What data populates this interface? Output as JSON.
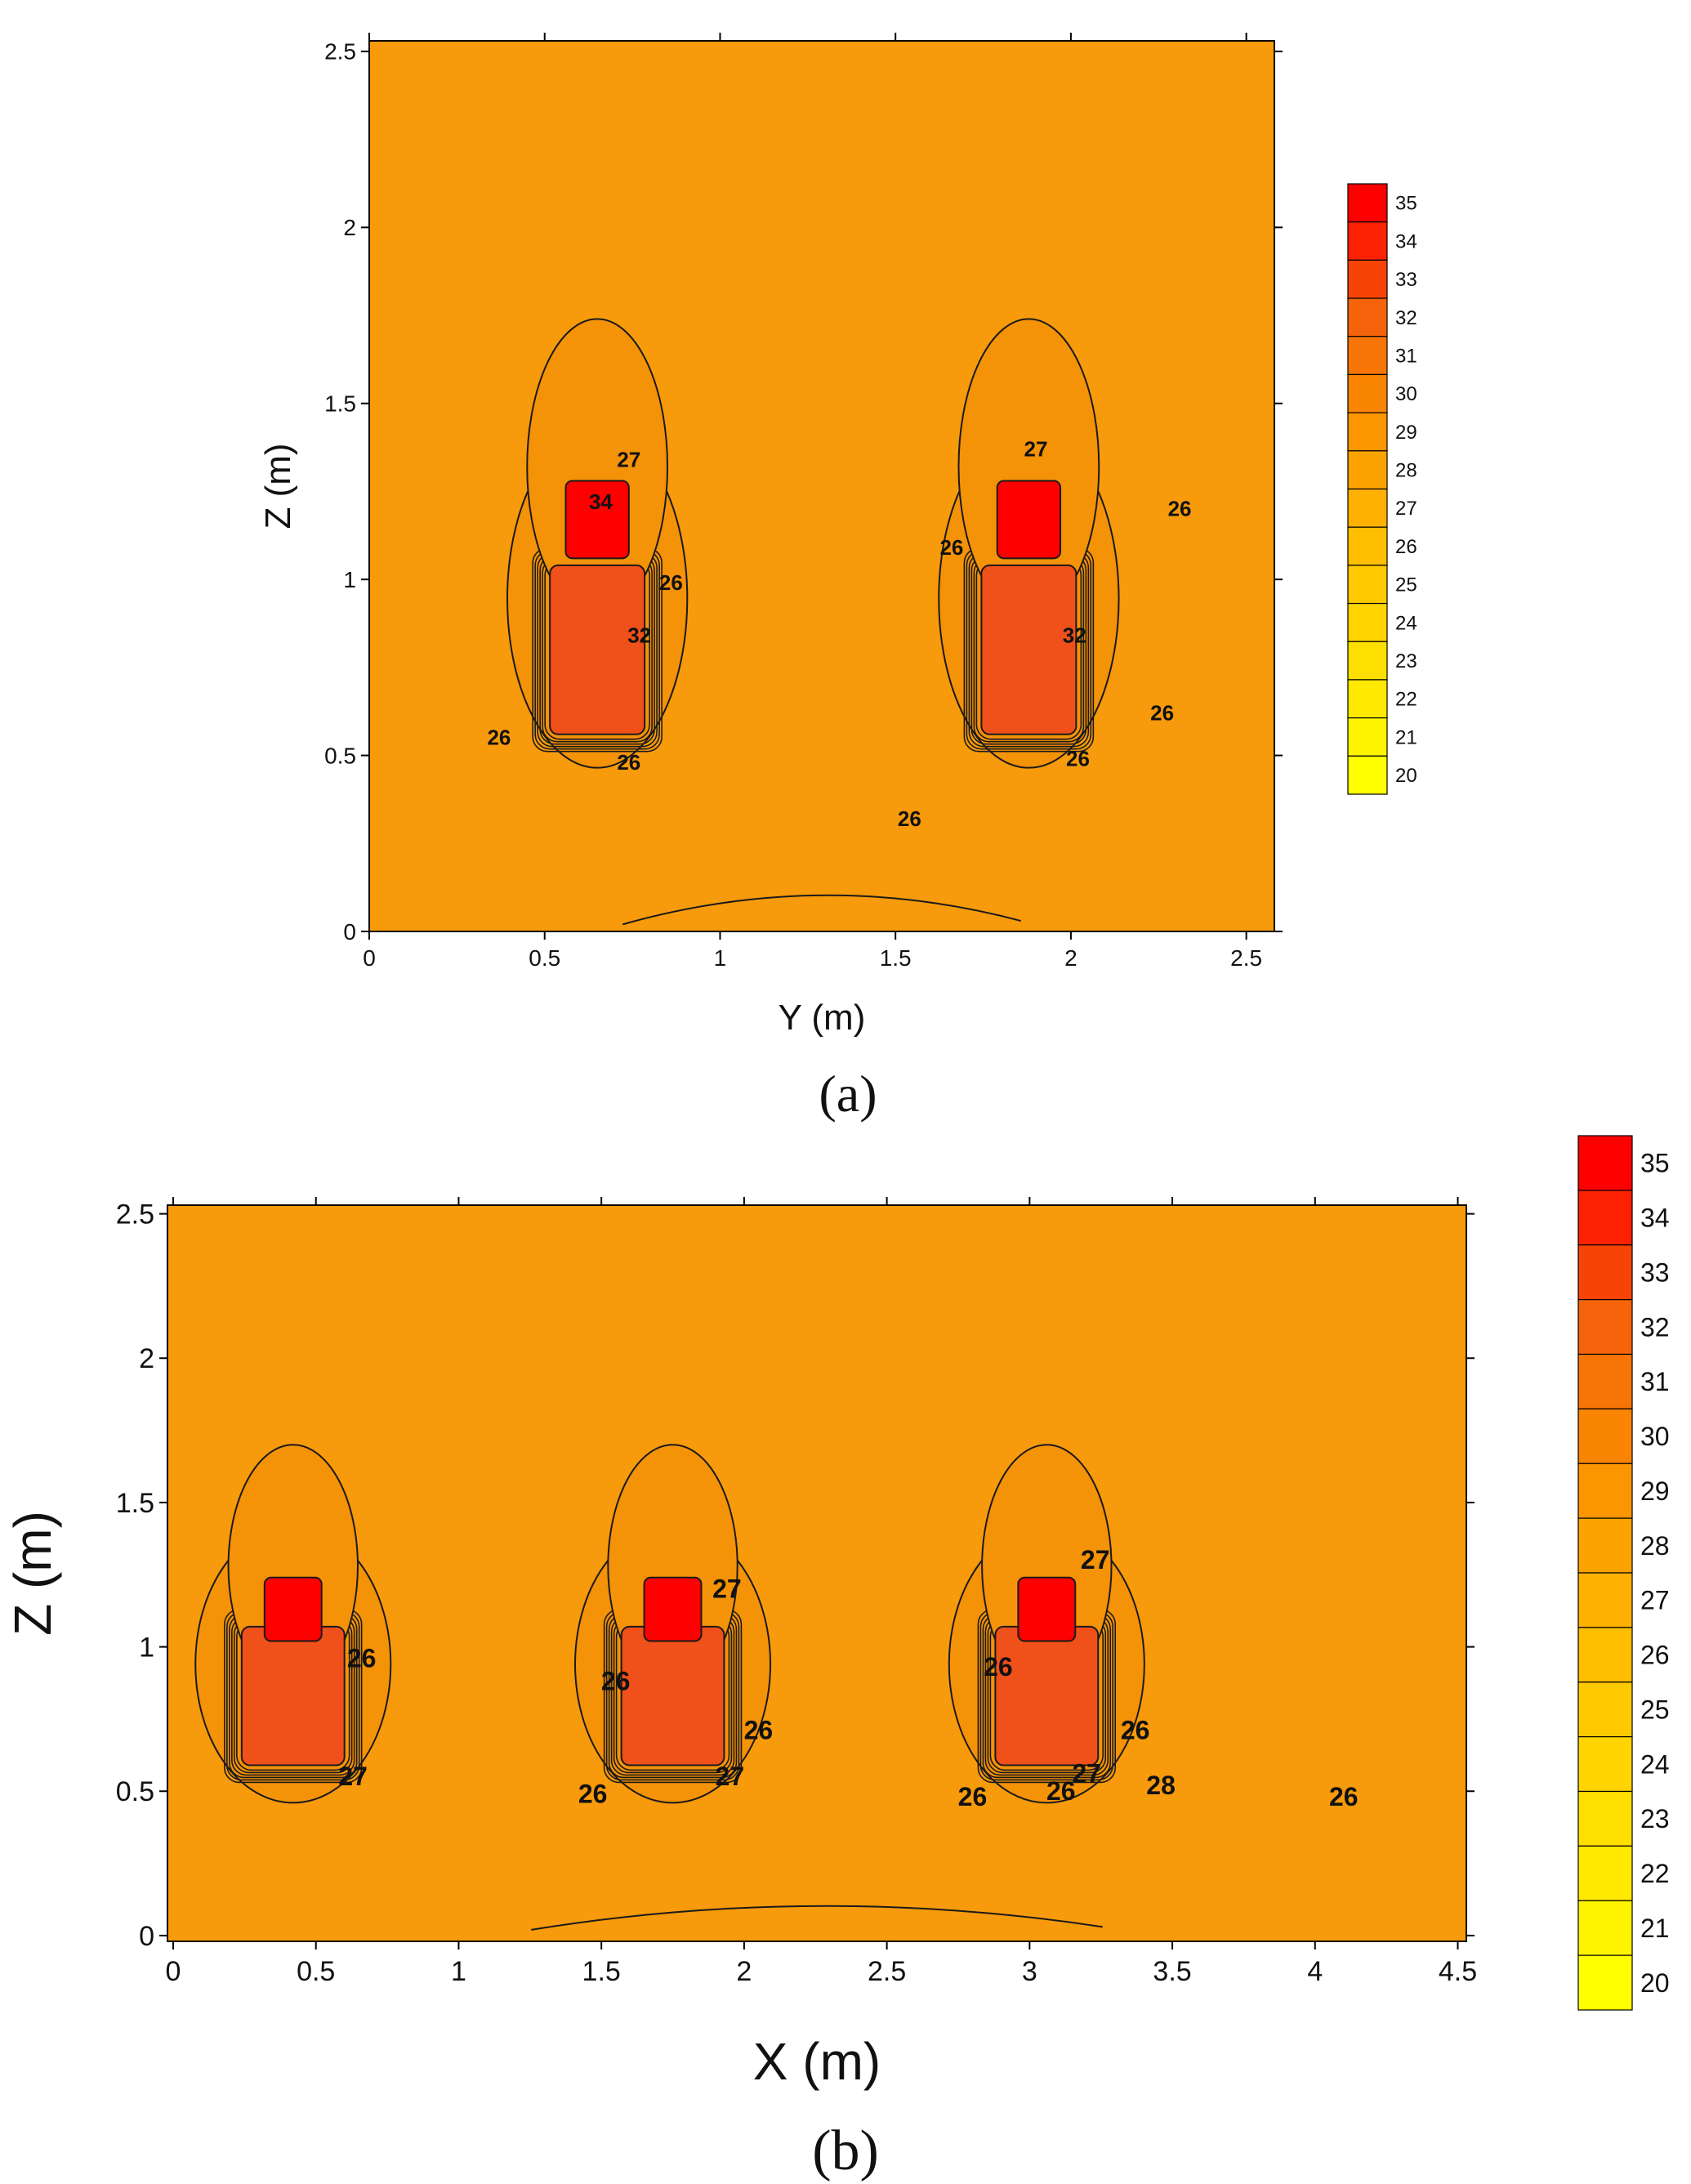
{
  "chart_data": [
    {
      "type": "heatmap",
      "panel_label": "(a)",
      "xlabel": "Y (m)",
      "ylabel": "Z (m)",
      "xlim": [
        0,
        2.58
      ],
      "ylim": [
        0,
        2.53
      ],
      "xticks": [
        "0",
        "0.5",
        "1",
        "1.5",
        "2",
        "2.5"
      ],
      "yticks": [
        "0",
        "0.5",
        "1",
        "1.5",
        "2",
        "2.5"
      ],
      "colorbar": {
        "min": 20,
        "max": 35,
        "step": 1,
        "labels": [
          "35",
          "34",
          "33",
          "32",
          "31",
          "30",
          "29",
          "28",
          "27",
          "26",
          "25",
          "24",
          "23",
          "22",
          "21",
          "20"
        ]
      },
      "background_value": 26,
      "hot_regions": [
        {
          "center_y": 0.65,
          "head_z": 1.17,
          "body_z": 0.82,
          "peak_value": 35
        },
        {
          "center_y": 1.88,
          "head_z": 1.17,
          "body_z": 0.82,
          "peak_value": 35
        }
      ],
      "contour_labels": [
        {
          "text": "27",
          "x": 0.74,
          "y": 1.32
        },
        {
          "text": "34",
          "x": 0.66,
          "y": 1.2
        },
        {
          "text": "26",
          "x": 0.86,
          "y": 0.97
        },
        {
          "text": "32",
          "x": 0.77,
          "y": 0.82
        },
        {
          "text": "26",
          "x": 0.37,
          "y": 0.53
        },
        {
          "text": "26",
          "x": 0.74,
          "y": 0.46
        },
        {
          "text": "26",
          "x": 1.66,
          "y": 1.07
        },
        {
          "text": "27",
          "x": 1.9,
          "y": 1.35
        },
        {
          "text": "26",
          "x": 2.31,
          "y": 1.18
        },
        {
          "text": "32",
          "x": 2.01,
          "y": 0.82
        },
        {
          "text": "26",
          "x": 2.26,
          "y": 0.6
        },
        {
          "text": "26",
          "x": 2.02,
          "y": 0.47
        },
        {
          "text": "26",
          "x": 1.54,
          "y": 0.3
        }
      ]
    },
    {
      "type": "heatmap",
      "panel_label": "(b)",
      "xlabel": "X (m)",
      "ylabel": "Z (m)",
      "xlim": [
        -0.02,
        4.53
      ],
      "ylim": [
        -0.02,
        2.53
      ],
      "xticks": [
        "0",
        "0.5",
        "1",
        "1.5",
        "2",
        "2.5",
        "3",
        "3.5",
        "4",
        "4.5"
      ],
      "yticks": [
        "0",
        "0.5",
        "1",
        "1.5",
        "2",
        "2.5"
      ],
      "colorbar": {
        "min": 20,
        "max": 35,
        "step": 1,
        "labels": [
          "35",
          "34",
          "33",
          "32",
          "31",
          "30",
          "29",
          "28",
          "27",
          "26",
          "25",
          "24",
          "23",
          "22",
          "21",
          "20"
        ]
      },
      "background_value": 26,
      "hot_regions": [
        {
          "center_x": 0.42,
          "head_z": 1.13,
          "body_z": 0.85,
          "peak_value": 35
        },
        {
          "center_x": 1.75,
          "head_z": 1.13,
          "body_z": 0.85,
          "peak_value": 35
        },
        {
          "center_x": 3.06,
          "head_z": 1.13,
          "body_z": 0.85,
          "peak_value": 35
        }
      ],
      "contour_labels": [
        {
          "text": "26",
          "x": 0.66,
          "y": 0.93
        },
        {
          "text": "27",
          "x": 0.63,
          "y": 0.52
        },
        {
          "text": "26",
          "x": 1.55,
          "y": 0.85
        },
        {
          "text": "26",
          "x": 1.47,
          "y": 0.46
        },
        {
          "text": "27",
          "x": 1.94,
          "y": 1.17
        },
        {
          "text": "26",
          "x": 2.05,
          "y": 0.68
        },
        {
          "text": "27",
          "x": 1.95,
          "y": 0.52
        },
        {
          "text": "26",
          "x": 2.8,
          "y": 0.45
        },
        {
          "text": "26",
          "x": 2.89,
          "y": 0.9
        },
        {
          "text": "27",
          "x": 3.23,
          "y": 1.27
        },
        {
          "text": "26",
          "x": 3.37,
          "y": 0.68
        },
        {
          "text": "27",
          "x": 3.2,
          "y": 0.53
        },
        {
          "text": "26",
          "x": 3.11,
          "y": 0.47
        },
        {
          "text": "28",
          "x": 3.46,
          "y": 0.49
        },
        {
          "text": "26",
          "x": 4.1,
          "y": 0.45
        }
      ]
    }
  ]
}
